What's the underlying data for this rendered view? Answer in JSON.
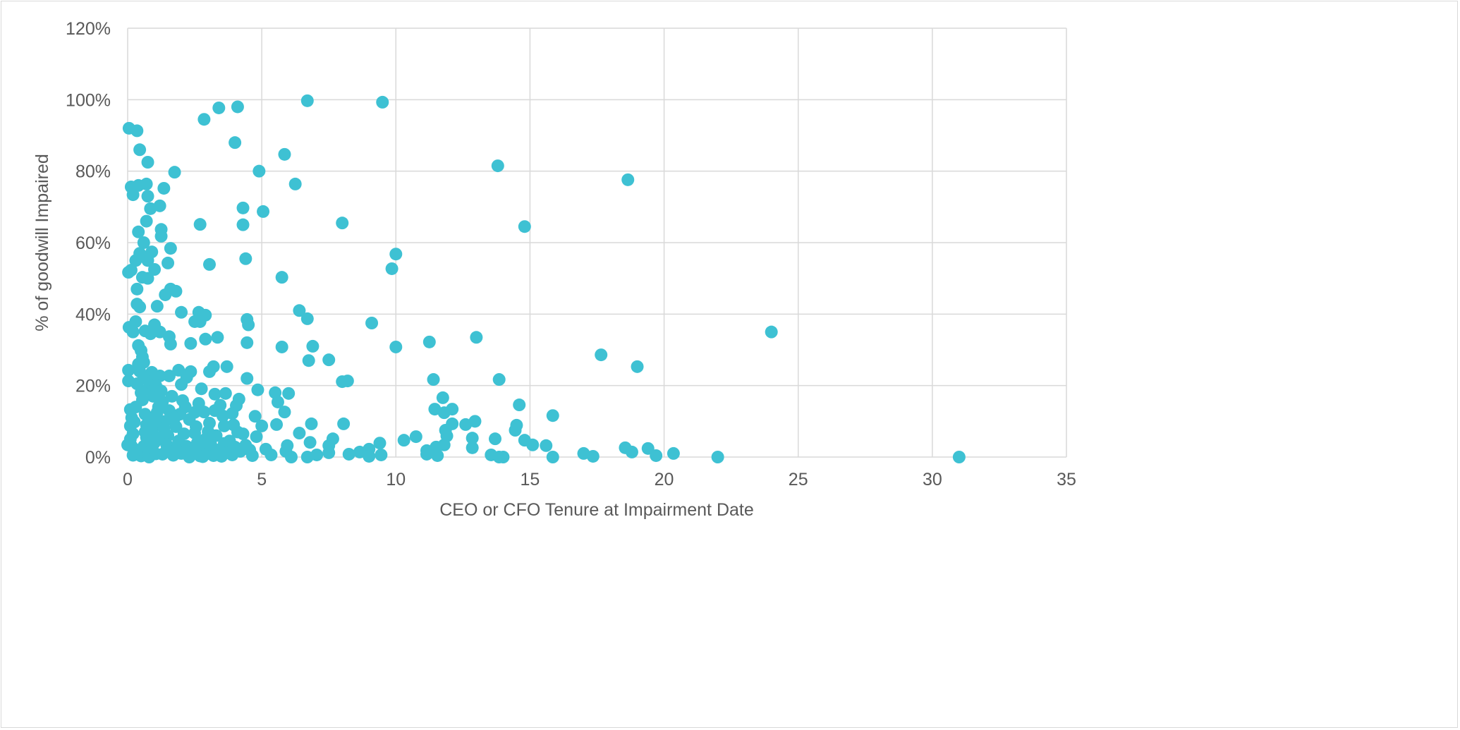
{
  "chart_data": {
    "type": "scatter",
    "title": "",
    "xlabel": "CEO or CFO Tenure at Impairment Date",
    "ylabel": "% of goodwill Impaired",
    "xlim": [
      0,
      35
    ],
    "ylim": [
      0,
      120
    ],
    "x_ticks": [
      0,
      5,
      10,
      15,
      20,
      25,
      30,
      35
    ],
    "y_ticks": [
      0,
      20,
      40,
      60,
      80,
      100,
      120
    ],
    "y_tick_labels": [
      "0%",
      "20%",
      "40%",
      "60%",
      "80%",
      "100%",
      "120%"
    ],
    "grid": true,
    "legend": "none",
    "marker_color": "#3EC1D3",
    "points": [
      [
        0.05,
        92
      ],
      [
        0.35,
        91.3
      ],
      [
        0.45,
        86
      ],
      [
        0.75,
        82.5
      ],
      [
        0.13,
        75.6
      ],
      [
        0.2,
        73.4
      ],
      [
        0.4,
        76
      ],
      [
        0.7,
        76.4
      ],
      [
        0.75,
        73
      ],
      [
        1.2,
        70.3
      ],
      [
        0.85,
        69.5
      ],
      [
        1.35,
        75.2
      ],
      [
        1.75,
        79.7
      ],
      [
        2.85,
        94.5
      ],
      [
        3.4,
        97.7
      ],
      [
        4.1,
        98
      ],
      [
        4.0,
        88
      ],
      [
        6.7,
        99.7
      ],
      [
        9.5,
        99.3
      ],
      [
        5.85,
        84.7
      ],
      [
        4.9,
        80
      ],
      [
        6.25,
        76.4
      ],
      [
        4.3,
        69.7
      ],
      [
        5.05,
        68.7
      ],
      [
        4.3,
        65
      ],
      [
        2.7,
        65.1
      ],
      [
        8.0,
        65.5
      ],
      [
        13.8,
        81.5
      ],
      [
        18.65,
        77.6
      ],
      [
        14.8,
        64.5
      ],
      [
        10.0,
        56.8
      ],
      [
        9.85,
        52.7
      ],
      [
        24.0,
        35
      ],
      [
        17.65,
        28.6
      ],
      [
        19.0,
        25.3
      ],
      [
        13.0,
        33.5
      ],
      [
        11.25,
        32.2
      ],
      [
        9.1,
        37.5
      ],
      [
        10.0,
        30.8
      ],
      [
        5.75,
        50.3
      ],
      [
        3.05,
        53.9
      ],
      [
        4.4,
        55.5
      ],
      [
        6.4,
        41
      ],
      [
        6.7,
        38.7
      ],
      [
        6.9,
        31
      ],
      [
        5.75,
        30.8
      ],
      [
        6.75,
        27
      ],
      [
        7.5,
        27.2
      ],
      [
        4.45,
        38.5
      ],
      [
        4.5,
        37
      ],
      [
        4.45,
        32
      ],
      [
        4.45,
        22
      ],
      [
        3.7,
        25.3
      ],
      [
        3.2,
        25.3
      ],
      [
        3.35,
        33.5
      ],
      [
        2.9,
        39.7
      ],
      [
        2.65,
        40.5
      ],
      [
        2.7,
        37.9
      ],
      [
        2.5,
        37.9
      ],
      [
        2.9,
        33
      ],
      [
        1.55,
        33.7
      ],
      [
        1.6,
        47
      ],
      [
        1.8,
        46.4
      ],
      [
        2.0,
        40.5
      ],
      [
        1.4,
        45.4
      ],
      [
        1.5,
        54.3
      ],
      [
        1.6,
        58.4
      ],
      [
        1.25,
        63.7
      ],
      [
        1.25,
        61.8
      ],
      [
        0.7,
        66
      ],
      [
        0.4,
        63
      ],
      [
        0.6,
        60
      ],
      [
        0.45,
        57
      ],
      [
        0.9,
        57.4
      ],
      [
        0.75,
        55
      ],
      [
        1.0,
        52.5
      ],
      [
        0.03,
        51.7
      ],
      [
        0.13,
        52.3
      ],
      [
        0.3,
        55
      ],
      [
        0.75,
        50
      ],
      [
        0.55,
        50.3
      ],
      [
        0.35,
        47
      ],
      [
        1.1,
        42.2
      ],
      [
        0.35,
        42.8
      ],
      [
        0.45,
        42
      ],
      [
        0.05,
        36.3
      ],
      [
        0.2,
        35
      ],
      [
        0.3,
        37.9
      ],
      [
        0.4,
        31.2
      ],
      [
        0.5,
        29.8
      ],
      [
        1.0,
        37
      ],
      [
        0.65,
        35.3
      ],
      [
        0.85,
        34.5
      ],
      [
        1.2,
        35
      ],
      [
        0.03,
        24.3
      ],
      [
        0.03,
        21.3
      ],
      [
        0,
        3.4
      ],
      [
        8.0,
        21.1
      ],
      [
        8.2,
        21.3
      ],
      [
        11.4,
        21.7
      ],
      [
        13.85,
        21.7
      ],
      [
        11.75,
        16.6
      ],
      [
        11.45,
        13.4
      ],
      [
        11.8,
        12.4
      ],
      [
        12.1,
        13.4
      ],
      [
        12.1,
        9.3
      ],
      [
        11.85,
        7.5
      ],
      [
        11.9,
        5.9
      ],
      [
        11.8,
        3.4
      ],
      [
        12.95,
        10
      ],
      [
        12.6,
        9.1
      ],
      [
        14.6,
        14.6
      ],
      [
        14.5,
        8.9
      ],
      [
        14.45,
        7.5
      ],
      [
        14.8,
        4.7
      ],
      [
        15.1,
        3.4
      ],
      [
        15.6,
        3.2
      ],
      [
        15.85,
        11.6
      ],
      [
        15.85,
        0
      ],
      [
        12.85,
        5.3
      ],
      [
        12.85,
        2.6
      ],
      [
        13.7,
        5.1
      ],
      [
        13.55,
        0.6
      ],
      [
        13.85,
        0
      ],
      [
        14.0,
        0
      ],
      [
        17.0,
        1
      ],
      [
        17.35,
        0.2
      ],
      [
        18.55,
        2.6
      ],
      [
        18.8,
        1.4
      ],
      [
        19.4,
        2.4
      ],
      [
        19.7,
        0.4
      ],
      [
        20.35,
        1
      ],
      [
        22.0,
        0
      ],
      [
        31.0,
        0
      ],
      [
        10.75,
        5.7
      ],
      [
        10.3,
        4.7
      ],
      [
        11.15,
        1.8
      ],
      [
        11.15,
        0.8
      ],
      [
        11.5,
        2.8
      ],
      [
        11.55,
        0.4
      ],
      [
        9.4,
        3.9
      ],
      [
        9.45,
        0.6
      ],
      [
        9.0,
        2.2
      ],
      [
        9.0,
        0.2
      ],
      [
        8.65,
        1.4
      ],
      [
        8.25,
        0.8
      ],
      [
        8.05,
        9.3
      ],
      [
        7.65,
        5.1
      ],
      [
        7.5,
        3.2
      ],
      [
        7.5,
        1.2
      ],
      [
        7.05,
        0.6
      ],
      [
        6.85,
        9.3
      ],
      [
        6.8,
        4.1
      ],
      [
        6.7,
        0
      ],
      [
        6.4,
        6.7
      ],
      [
        6.0,
        17.8
      ],
      [
        5.85,
        12.6
      ],
      [
        5.5,
        18
      ],
      [
        5.6,
        15.4
      ],
      [
        5.55,
        9.1
      ],
      [
        4.85,
        18.8
      ],
      [
        4.75,
        11.4
      ],
      [
        5.0,
        8.7
      ],
      [
        4.8,
        5.7
      ],
      [
        4.55,
        2
      ],
      [
        4.3,
        6.5
      ],
      [
        4.15,
        16.2
      ],
      [
        4.05,
        14.4
      ],
      [
        3.9,
        12.2
      ],
      [
        3.65,
        17.8
      ],
      [
        3.25,
        17.6
      ],
      [
        3.25,
        13
      ],
      [
        3.6,
        8.7
      ],
      [
        3.05,
        23.9
      ],
      [
        2.75,
        19.1
      ],
      [
        2.35,
        23.9
      ],
      [
        2.2,
        22.3
      ],
      [
        1.9,
        24.3
      ],
      [
        2.0,
        20.3
      ],
      [
        1.6,
        31.6
      ],
      [
        2.35,
        31.8
      ],
      [
        1.55,
        22.7
      ],
      [
        1.2,
        22.7
      ],
      [
        0.9,
        23.7
      ],
      [
        2.05,
        15.8
      ],
      [
        1.95,
        12
      ],
      [
        2.5,
        6.7
      ],
      [
        2.85,
        12.6
      ],
      [
        3.0,
        7.1
      ],
      [
        5.95,
        3.2
      ],
      [
        5.9,
        1.6
      ],
      [
        5.15,
        2.2
      ],
      [
        5.35,
        0.6
      ],
      [
        6.1,
        0
      ],
      [
        4.65,
        0.4
      ],
      [
        0.1,
        13.3
      ],
      [
        0.15,
        11
      ],
      [
        0.1,
        8.7
      ],
      [
        0.2,
        6.5
      ],
      [
        0.1,
        5
      ],
      [
        0.3,
        14
      ],
      [
        0.35,
        20.5
      ],
      [
        0.4,
        26
      ],
      [
        0.45,
        24
      ],
      [
        0.5,
        18
      ],
      [
        0.55,
        16
      ],
      [
        0.6,
        22.5
      ],
      [
        0.65,
        12
      ],
      [
        0.7,
        9
      ],
      [
        0.75,
        19
      ],
      [
        0.3,
        2
      ],
      [
        0.4,
        1
      ],
      [
        0.5,
        0.3
      ],
      [
        0.6,
        3
      ],
      [
        0.7,
        5.5
      ],
      [
        0.8,
        1.5
      ],
      [
        0.9,
        7.5
      ],
      [
        1.0,
        4
      ],
      [
        1.1,
        12.5
      ],
      [
        1.2,
        9.5
      ],
      [
        1.3,
        15.5
      ],
      [
        1.4,
        10
      ],
      [
        1.5,
        6
      ],
      [
        1.6,
        2.5
      ],
      [
        1.7,
        0.5
      ],
      [
        0.55,
        28
      ],
      [
        0.6,
        26.5
      ],
      [
        0.8,
        21
      ],
      [
        0.95,
        17
      ],
      [
        1.05,
        20
      ],
      [
        1.15,
        14
      ],
      [
        1.25,
        18.5
      ],
      [
        1.35,
        8
      ],
      [
        1.45,
        3.5
      ],
      [
        1.55,
        13
      ],
      [
        1.65,
        17
      ],
      [
        1.8,
        8.5
      ],
      [
        1.9,
        4.5
      ],
      [
        2.0,
        1
      ],
      [
        2.1,
        6.5
      ],
      [
        2.2,
        3
      ],
      [
        2.3,
        10.5
      ],
      [
        2.4,
        1.5
      ],
      [
        2.5,
        12.5
      ],
      [
        2.6,
        4
      ],
      [
        2.7,
        0.3
      ],
      [
        2.8,
        2.5
      ],
      [
        2.9,
        5
      ],
      [
        3.0,
        1
      ],
      [
        3.1,
        3.5
      ],
      [
        3.2,
        0.4
      ],
      [
        3.3,
        6
      ],
      [
        3.4,
        2
      ],
      [
        3.5,
        0.2
      ],
      [
        3.6,
        3.8
      ],
      [
        3.7,
        1.2
      ],
      [
        3.8,
        4.5
      ],
      [
        3.9,
        0.6
      ],
      [
        4.0,
        2.8
      ],
      [
        4.1,
        7
      ],
      [
        4.2,
        1.6
      ],
      [
        4.4,
        3.3
      ],
      [
        0.2,
        0.5
      ],
      [
        0.8,
        0
      ],
      [
        1.3,
        0.8
      ],
      [
        1.8,
        2
      ],
      [
        2.3,
        0
      ],
      [
        2.8,
        0.1
      ],
      [
        3.3,
        0.9
      ],
      [
        0.95,
        3.8
      ],
      [
        0.25,
        9.8
      ],
      [
        0.15,
        3
      ],
      [
        1.05,
        0.9
      ],
      [
        1.75,
        11
      ],
      [
        2.55,
        8.5
      ],
      [
        3.05,
        9.5
      ],
      [
        3.55,
        11.5
      ],
      [
        3.95,
        9
      ],
      [
        0.65,
        7
      ],
      [
        1.15,
        5.5
      ],
      [
        2.15,
        14
      ],
      [
        2.65,
        15
      ],
      [
        3.45,
        14.5
      ],
      [
        0.85,
        10.5
      ],
      [
        1.45,
        1.8
      ]
    ]
  }
}
